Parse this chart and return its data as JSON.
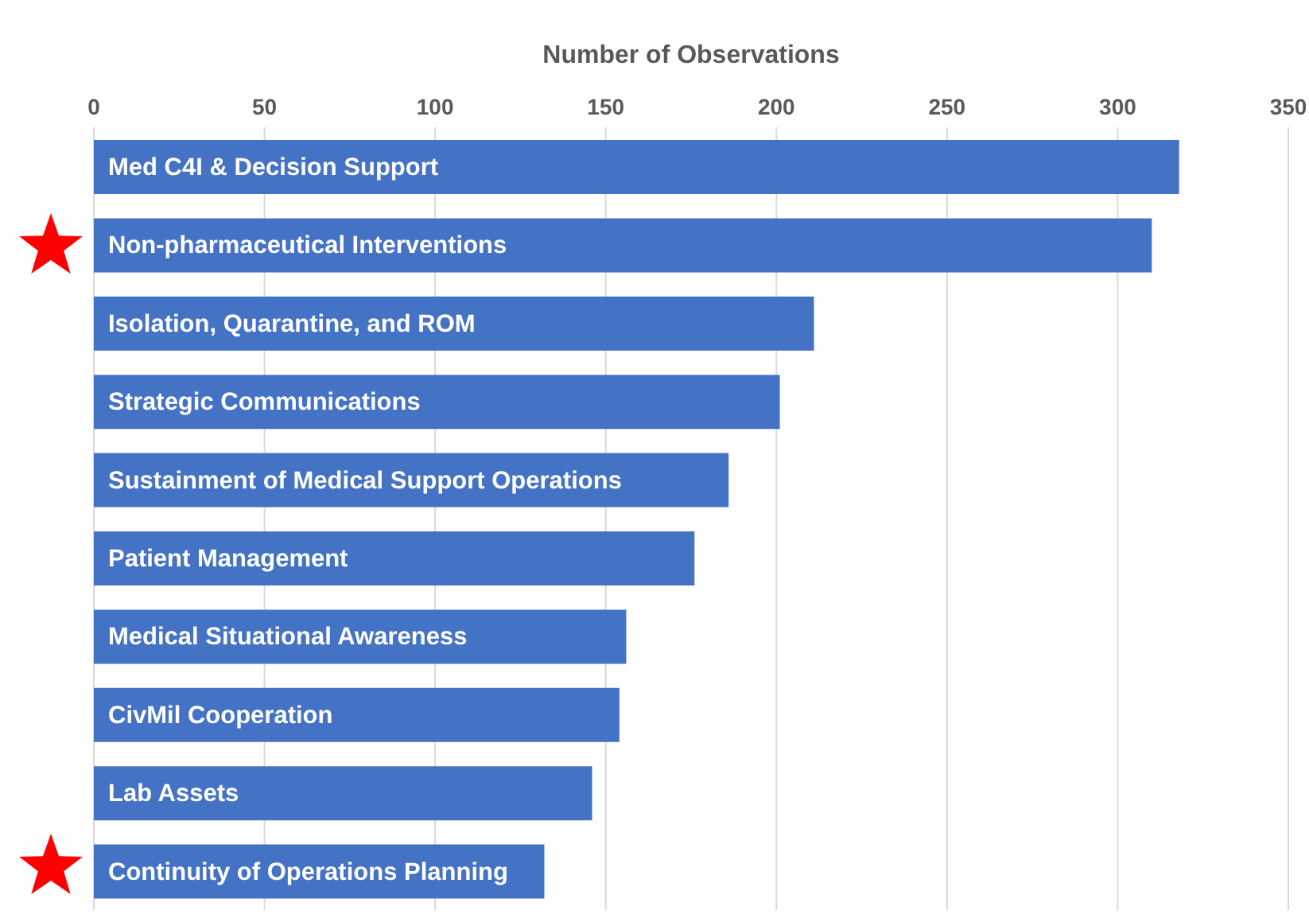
{
  "chart_data": {
    "type": "bar",
    "orientation": "horizontal",
    "xlabel": "Number of Observations",
    "categories": [
      "Med C4I & Decision Support",
      "Non-pharmaceutical Interventions",
      "Isolation, Quarantine, and ROM",
      "Strategic Communications",
      "Sustainment of Medical Support Operations",
      "Patient Management",
      "Medical Situational Awareness",
      "CivMil Cooperation",
      "Lab Assets",
      "Continuity of Operations Planning"
    ],
    "values": [
      318,
      310,
      211,
      201,
      186,
      176,
      156,
      154,
      146,
      132
    ],
    "color": "#4472c4",
    "xlim": [
      0,
      350
    ],
    "xticks": [
      0,
      50,
      100,
      150,
      200,
      250,
      300,
      350
    ],
    "grid": "x"
  }
}
